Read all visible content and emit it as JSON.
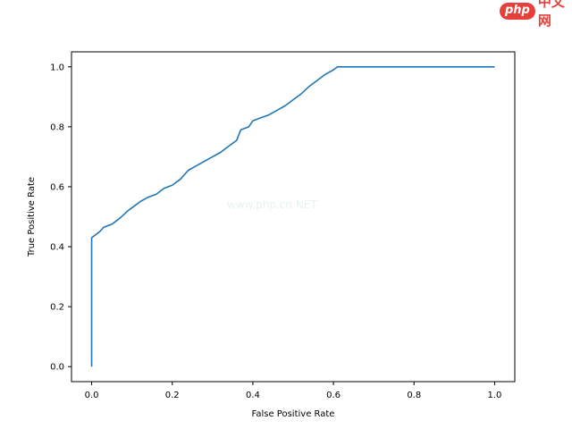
{
  "chart_data": {
    "type": "line",
    "title": "",
    "xlabel": "False Positive Rate",
    "ylabel": "True Positive Rate",
    "xlim": [
      -0.05,
      1.05
    ],
    "ylim": [
      -0.05,
      1.05
    ],
    "xticks": [
      0.0,
      0.2,
      0.4,
      0.6,
      0.8,
      1.0
    ],
    "yticks": [
      0.0,
      0.2,
      0.4,
      0.6,
      0.8,
      1.0
    ],
    "tick_labels_x": [
      "0.0",
      "0.2",
      "0.4",
      "0.6",
      "0.8",
      "1.0"
    ],
    "tick_labels_y": [
      "0.0",
      "0.2",
      "0.4",
      "0.6",
      "0.8",
      "1.0"
    ],
    "grid": false,
    "legend": "none",
    "series": [
      {
        "color": "#1f77b4",
        "x": [
          0.0,
          0.0,
          0.005,
          0.01,
          0.02,
          0.03,
          0.05,
          0.07,
          0.09,
          0.1,
          0.12,
          0.14,
          0.16,
          0.18,
          0.2,
          0.22,
          0.24,
          0.26,
          0.28,
          0.3,
          0.32,
          0.34,
          0.36,
          0.37,
          0.39,
          0.4,
          0.42,
          0.44,
          0.46,
          0.48,
          0.5,
          0.52,
          0.54,
          0.56,
          0.58,
          0.6,
          0.61,
          0.62,
          0.7,
          0.8,
          0.9,
          1.0
        ],
        "y": [
          0.0,
          0.43,
          0.435,
          0.44,
          0.45,
          0.465,
          0.475,
          0.495,
          0.52,
          0.53,
          0.55,
          0.565,
          0.575,
          0.595,
          0.605,
          0.625,
          0.655,
          0.67,
          0.685,
          0.7,
          0.715,
          0.735,
          0.755,
          0.79,
          0.8,
          0.82,
          0.83,
          0.84,
          0.855,
          0.87,
          0.89,
          0.91,
          0.935,
          0.955,
          0.975,
          0.99,
          1.0,
          1.0,
          1.0,
          1.0,
          1.0,
          1.0
        ]
      }
    ]
  },
  "watermark": {
    "logo_badge": "php",
    "logo_text": "中文网",
    "center_text": "www.php.cn NET"
  }
}
